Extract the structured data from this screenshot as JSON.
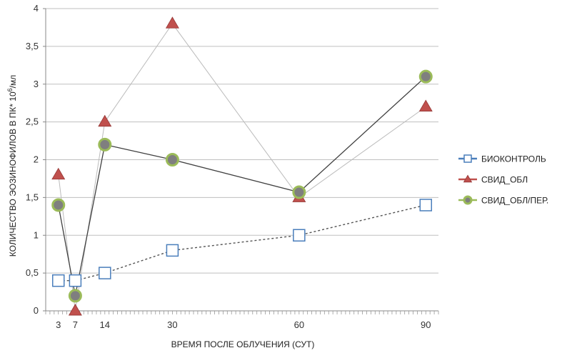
{
  "chart_data": {
    "type": "line",
    "title": "",
    "xlabel": "ВРЕМЯ ПОСЛЕ ОБЛУЧЕНИЯ (СУТ)",
    "ylabel_main": "КОЛИЧЕСТВО ЭОЗИНОФИЛОВ В ПК* 10",
    "ylabel_sup": "6",
    "ylabel_unit": "/мл",
    "x": [
      3,
      7,
      14,
      30,
      60,
      90
    ],
    "x_tick_labels": [
      "3",
      "7",
      "14",
      "30",
      "60",
      "90"
    ],
    "xlim": [
      0,
      93
    ],
    "ylim": [
      0,
      4
    ],
    "y_ticks": [
      0,
      0.5,
      1,
      1.5,
      2,
      2.5,
      3,
      3.5,
      4
    ],
    "y_tick_labels": [
      "0",
      "0,5",
      "1",
      "1,5",
      "2",
      "2,5",
      "3",
      "3,5",
      "4"
    ],
    "grid": "horizontal",
    "legend_position": "right",
    "series": [
      {
        "name": "БИОКОНТРОЛЬ",
        "values": [
          0.4,
          0.4,
          0.5,
          0.8,
          1.0,
          1.4
        ],
        "marker": "square",
        "color": "#4A7EBB",
        "line_color": "#555555",
        "line_style": "dotted"
      },
      {
        "name": "СВИД_ОБЛ",
        "values": [
          1.8,
          0.0,
          2.5,
          3.8,
          1.5,
          2.7
        ],
        "marker": "triangle",
        "color": "#C0504D",
        "line_color": "#BBBBBB",
        "line_style": "solid-thin"
      },
      {
        "name": "СВИД_ОБЛ/ПЕР.",
        "values": [
          1.4,
          0.2,
          2.2,
          2.0,
          1.57,
          3.1
        ],
        "marker": "circle",
        "color": "#9BBB59",
        "fill": "#7F7F7F",
        "line_color": "#404040",
        "line_style": "solid"
      }
    ]
  }
}
